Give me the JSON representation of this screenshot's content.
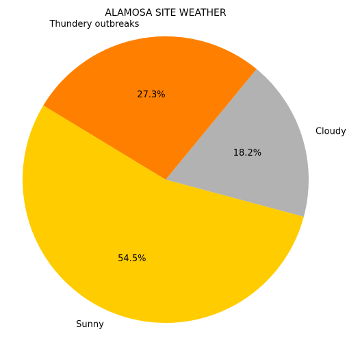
{
  "chart_data": {
    "type": "pie",
    "title": "ALAMOSA SITE WEATHER",
    "slices": [
      {
        "label": "Cloudy",
        "value": 18.2,
        "pct_label": "18.2%",
        "color": "#b2b2b2"
      },
      {
        "label": "Thundery outbreaks",
        "value": 27.3,
        "pct_label": "27.3%",
        "color": "#ff8000"
      },
      {
        "label": "Sunny",
        "value": 54.5,
        "pct_label": "54.5%",
        "color": "#ffcc00"
      }
    ],
    "start_angle_deg": -15,
    "direction": "counterclockwise",
    "legend": "none"
  }
}
